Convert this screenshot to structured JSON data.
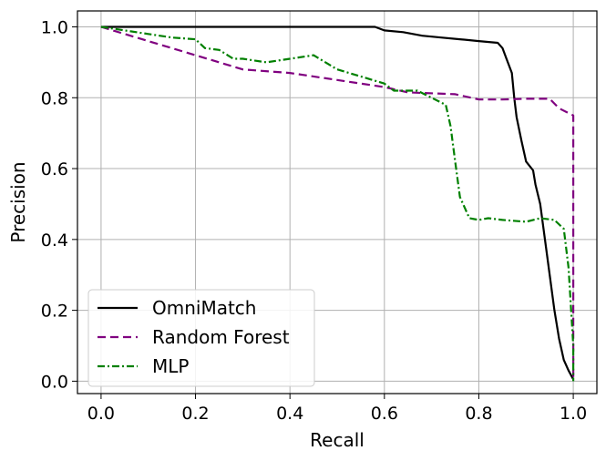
{
  "chart_data": {
    "type": "line",
    "title": "",
    "xlabel": "Recall",
    "ylabel": "Precision",
    "xlim": [
      -0.05,
      1.05
    ],
    "ylim": [
      -0.035,
      1.045
    ],
    "grid": true,
    "legend_position": "bottom-left",
    "x_ticks": [
      0.0,
      0.2,
      0.4,
      0.6,
      0.8,
      1.0
    ],
    "x_tick_labels": [
      "0.0",
      "0.2",
      "0.4",
      "0.6",
      "0.8",
      "1.0"
    ],
    "y_ticks": [
      0.0,
      0.2,
      0.4,
      0.6,
      0.8,
      1.0
    ],
    "y_tick_labels": [
      "0.0",
      "0.2",
      "0.4",
      "0.6",
      "0.8",
      "1.0"
    ],
    "series": [
      {
        "name": "OmniMatch",
        "color": "#000000",
        "dash": "solid",
        "points": [
          [
            0.0,
            1.0
          ],
          [
            0.3,
            1.0
          ],
          [
            0.58,
            1.0
          ],
          [
            0.6,
            0.99
          ],
          [
            0.64,
            0.985
          ],
          [
            0.68,
            0.975
          ],
          [
            0.72,
            0.97
          ],
          [
            0.76,
            0.965
          ],
          [
            0.8,
            0.96
          ],
          [
            0.84,
            0.955
          ],
          [
            0.85,
            0.94
          ],
          [
            0.86,
            0.905
          ],
          [
            0.87,
            0.87
          ],
          [
            0.875,
            0.8
          ],
          [
            0.88,
            0.745
          ],
          [
            0.89,
            0.68
          ],
          [
            0.9,
            0.62
          ],
          [
            0.915,
            0.595
          ],
          [
            0.92,
            0.555
          ],
          [
            0.93,
            0.5
          ],
          [
            0.94,
            0.4
          ],
          [
            0.95,
            0.3
          ],
          [
            0.96,
            0.2
          ],
          [
            0.97,
            0.12
          ],
          [
            0.98,
            0.06
          ],
          [
            0.99,
            0.03
          ],
          [
            1.0,
            0.005
          ]
        ]
      },
      {
        "name": "Random Forest",
        "color": "#800080",
        "dash": "dashed",
        "points": [
          [
            0.0,
            1.0
          ],
          [
            0.1,
            0.96
          ],
          [
            0.2,
            0.92
          ],
          [
            0.3,
            0.88
          ],
          [
            0.4,
            0.87
          ],
          [
            0.5,
            0.85
          ],
          [
            0.6,
            0.83
          ],
          [
            0.65,
            0.815
          ],
          [
            0.75,
            0.81
          ],
          [
            0.8,
            0.795
          ],
          [
            0.85,
            0.795
          ],
          [
            0.9,
            0.797
          ],
          [
            0.95,
            0.797
          ],
          [
            0.97,
            0.77
          ],
          [
            1.0,
            0.75
          ],
          [
            1.0,
            0.0
          ]
        ]
      },
      {
        "name": "MLP",
        "color": "#008000",
        "dash": "dashdot",
        "points": [
          [
            0.0,
            1.0
          ],
          [
            0.05,
            0.99
          ],
          [
            0.1,
            0.98
          ],
          [
            0.15,
            0.97
          ],
          [
            0.2,
            0.965
          ],
          [
            0.22,
            0.94
          ],
          [
            0.25,
            0.935
          ],
          [
            0.28,
            0.91
          ],
          [
            0.3,
            0.91
          ],
          [
            0.35,
            0.9
          ],
          [
            0.4,
            0.91
          ],
          [
            0.45,
            0.92
          ],
          [
            0.5,
            0.88
          ],
          [
            0.55,
            0.86
          ],
          [
            0.6,
            0.84
          ],
          [
            0.62,
            0.82
          ],
          [
            0.67,
            0.82
          ],
          [
            0.7,
            0.8
          ],
          [
            0.73,
            0.78
          ],
          [
            0.74,
            0.72
          ],
          [
            0.75,
            0.62
          ],
          [
            0.76,
            0.52
          ],
          [
            0.78,
            0.46
          ],
          [
            0.8,
            0.455
          ],
          [
            0.82,
            0.46
          ],
          [
            0.85,
            0.455
          ],
          [
            0.9,
            0.45
          ],
          [
            0.93,
            0.46
          ],
          [
            0.96,
            0.455
          ],
          [
            0.98,
            0.43
          ],
          [
            0.99,
            0.32
          ],
          [
            1.0,
            0.1
          ],
          [
            1.0,
            0.0
          ]
        ]
      }
    ]
  }
}
